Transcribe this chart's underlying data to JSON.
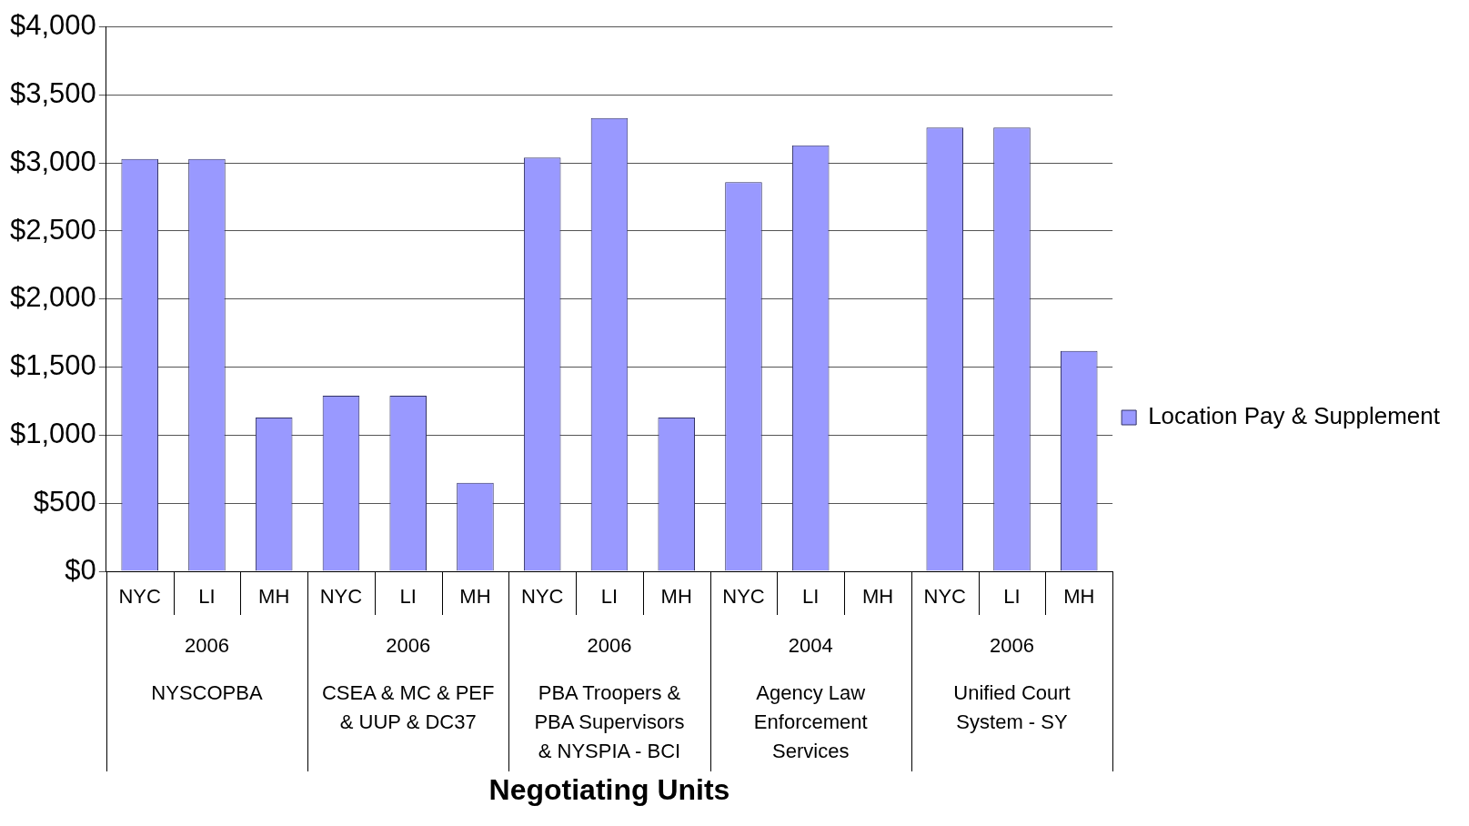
{
  "chart_data": {
    "type": "bar",
    "categories": [
      "NYC",
      "LI",
      "MH",
      "NYC",
      "LI",
      "MH",
      "NYC",
      "LI",
      "MH",
      "NYC",
      "LI",
      "MH",
      "NYC",
      "LI",
      "MH"
    ],
    "series": [
      {
        "name": "Location Pay & Supplement",
        "color": "#9999ff",
        "values": [
          3030,
          3030,
          1130,
          1290,
          1290,
          650,
          3040,
          3330,
          1130,
          2860,
          3130,
          null,
          3260,
          3260,
          1620
        ]
      }
    ],
    "annotations": [
      "2006",
      "NYSCOPBA",
      "2006",
      "CSEA & MC & PEF & UUP & DC37",
      "2006",
      "PBA Troopers & PBA Supervisors & NYSPIA - BCI",
      "2004",
      "Agency Law Enforcement Services",
      "2006",
      "Unified Court System - SY",
      "Negotiating Units"
    ],
    "ylim": [
      0,
      4000
    ],
    "yticks": [
      {
        "value": 0,
        "label": "$0"
      },
      {
        "value": 500,
        "label": "$500"
      },
      {
        "value": 1000,
        "label": "$1,000"
      },
      {
        "value": 1500,
        "label": "$1,500"
      },
      {
        "value": 2000,
        "label": "$2,000"
      },
      {
        "value": 2500,
        "label": "$2,500"
      },
      {
        "value": 3000,
        "label": "$3,000"
      },
      {
        "value": 3500,
        "label": "$3,500"
      },
      {
        "value": 4000,
        "label": "$4,000"
      }
    ],
    "grid": "y",
    "legend": "right"
  }
}
